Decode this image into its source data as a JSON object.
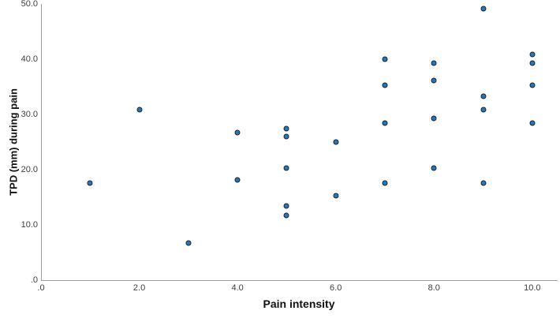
{
  "chart_data": {
    "type": "scatter",
    "title": "",
    "xlabel": "Pain intensity",
    "ylabel": "TPD (mm) during pain",
    "xlim": [
      0,
      10.5
    ],
    "ylim": [
      0,
      50
    ],
    "grid": false,
    "legend": "none",
    "x_ticks": {
      "values": [
        0,
        2,
        4,
        6,
        8,
        10
      ],
      "labels": [
        ".0",
        "2.0",
        "4.0",
        "6.0",
        "8.0",
        "10.0"
      ]
    },
    "y_ticks": {
      "values": [
        0,
        10,
        20,
        30,
        40,
        50
      ],
      "labels": [
        ".0",
        "10.0",
        "20.0",
        "30.0",
        "40.0",
        "50.0"
      ]
    },
    "points": [
      {
        "x": 1,
        "y": 17.6
      },
      {
        "x": 2,
        "y": 30.8
      },
      {
        "x": 3,
        "y": 6.7
      },
      {
        "x": 4,
        "y": 26.7
      },
      {
        "x": 4,
        "y": 18.2
      },
      {
        "x": 5,
        "y": 27.5
      },
      {
        "x": 5,
        "y": 26.0
      },
      {
        "x": 5,
        "y": 20.3
      },
      {
        "x": 5,
        "y": 13.4
      },
      {
        "x": 5,
        "y": 11.7
      },
      {
        "x": 6,
        "y": 25.0
      },
      {
        "x": 6,
        "y": 15.3
      },
      {
        "x": 7,
        "y": 40.0
      },
      {
        "x": 7,
        "y": 35.3
      },
      {
        "x": 7,
        "y": 28.4
      },
      {
        "x": 7,
        "y": 17.6
      },
      {
        "x": 8,
        "y": 39.3
      },
      {
        "x": 8,
        "y": 36.1
      },
      {
        "x": 8,
        "y": 29.3
      },
      {
        "x": 8,
        "y": 20.3
      },
      {
        "x": 9,
        "y": 49.1
      },
      {
        "x": 9,
        "y": 33.3
      },
      {
        "x": 9,
        "y": 30.9
      },
      {
        "x": 9,
        "y": 17.6
      },
      {
        "x": 10,
        "y": 40.9
      },
      {
        "x": 10,
        "y": 39.3
      },
      {
        "x": 10,
        "y": 35.3
      },
      {
        "x": 10,
        "y": 28.4
      }
    ],
    "colors": {
      "point_fill": "#2379bf",
      "point_border": "#202020",
      "axis_line": "#9b9b9b",
      "tick_text": "#3d3d3d",
      "title_text": "#111111",
      "background": "#ffffff"
    }
  }
}
